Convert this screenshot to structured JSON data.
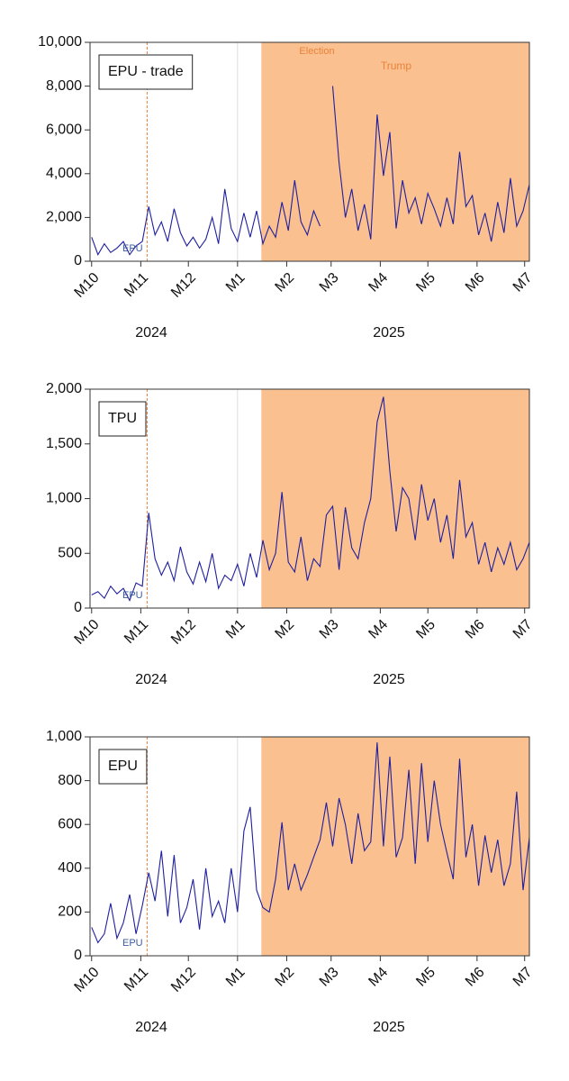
{
  "chart_data": [
    {
      "type": "line",
      "label": "EPU - trade",
      "x": [
        0,
        4,
        8,
        12,
        16,
        20,
        24,
        28,
        32,
        36,
        40,
        44,
        48,
        52,
        56,
        60,
        64,
        68,
        72,
        76,
        80,
        84,
        88,
        92,
        96,
        100,
        104,
        108,
        112,
        116,
        120,
        124,
        128,
        132,
        136,
        140,
        144,
        148,
        152,
        156,
        160,
        164,
        168,
        172,
        176,
        180,
        184,
        188,
        192,
        196,
        200,
        204,
        208,
        212,
        216,
        220,
        224,
        228,
        232,
        236,
        240,
        244,
        248,
        252,
        256,
        260,
        264,
        268,
        272,
        276
      ],
      "series": [
        {
          "name": "EPU - trade",
          "color": "#1f1f9f",
          "values": [
            1100,
            300,
            800,
            400,
            600,
            900,
            300,
            700,
            900,
            2500,
            1200,
            1800,
            900,
            2400,
            1300,
            700,
            1100,
            600,
            1000,
            2000,
            800,
            3300,
            1500,
            900,
            2200,
            1100,
            2300,
            800,
            1600,
            1100,
            2700,
            1400,
            3700,
            1800,
            1200,
            2300,
            1600,
            null,
            8000,
            4500,
            2000,
            3300,
            1400,
            2600,
            1000,
            6700,
            3900,
            5900,
            1500,
            3700,
            2200,
            2900,
            1700,
            3100,
            2400,
            1600,
            2900,
            1700,
            5000,
            2500,
            3000,
            1200,
            2200,
            900,
            2700,
            1300,
            3800,
            1600,
            2300,
            3500
          ]
        }
      ],
      "xlim": [
        -1,
        276
      ],
      "xticks": [
        {
          "value": 0,
          "label": "M10"
        },
        {
          "value": 31,
          "label": "M11"
        },
        {
          "value": 61,
          "label": "M12"
        },
        {
          "value": 92,
          "label": "M1"
        },
        {
          "value": 123,
          "label": "M2"
        },
        {
          "value": 151,
          "label": "M3"
        },
        {
          "value": 182,
          "label": "M4"
        },
        {
          "value": 212,
          "label": "M5"
        },
        {
          "value": 243,
          "label": "M6"
        },
        {
          "value": 273,
          "label": "M7"
        }
      ],
      "year_labels": [
        "2024",
        "2025"
      ],
      "ylim": [
        0,
        10000
      ],
      "yticks": [
        0,
        {
          "value": 2000,
          "label": "2,000"
        },
        {
          "value": 4000,
          "label": "4,000"
        },
        {
          "value": 6000,
          "label": "6,000"
        },
        {
          "value": 8000,
          "label": "8,000"
        },
        {
          "value": 10000,
          "label": "10,000"
        }
      ],
      "shade": {
        "from": 107,
        "to": 276,
        "color": "#fac090"
      },
      "event_line": {
        "x": 35,
        "color": "#e8833a"
      },
      "annotations": [
        "Election",
        "Trump",
        "EPU"
      ]
    },
    {
      "type": "line",
      "label": "TPU",
      "x": [
        0,
        4,
        8,
        12,
        16,
        20,
        24,
        28,
        32,
        36,
        40,
        44,
        48,
        52,
        56,
        60,
        64,
        68,
        72,
        76,
        80,
        84,
        88,
        92,
        96,
        100,
        104,
        108,
        112,
        116,
        120,
        124,
        128,
        132,
        136,
        140,
        144,
        148,
        152,
        156,
        160,
        164,
        168,
        172,
        176,
        180,
        184,
        188,
        192,
        196,
        200,
        204,
        208,
        212,
        216,
        220,
        224,
        228,
        232,
        236,
        240,
        244,
        248,
        252,
        256,
        260,
        264,
        268,
        272,
        276
      ],
      "series": [
        {
          "name": "TPU",
          "color": "#1f1f9f",
          "values": [
            120,
            150,
            90,
            200,
            130,
            180,
            70,
            230,
            200,
            870,
            450,
            300,
            420,
            250,
            560,
            330,
            220,
            420,
            240,
            500,
            180,
            300,
            250,
            400,
            200,
            500,
            280,
            620,
            350,
            500,
            1060,
            420,
            330,
            650,
            250,
            450,
            380,
            850,
            930,
            350,
            920,
            550,
            450,
            780,
            1000,
            1700,
            1930,
            1250,
            700,
            1100,
            1000,
            620,
            1130,
            800,
            1000,
            600,
            850,
            450,
            1170,
            650,
            780,
            400,
            600,
            330,
            550,
            400,
            600,
            350,
            450,
            600
          ]
        }
      ],
      "xlim": [
        -1,
        276
      ],
      "xticks": [
        {
          "value": 0,
          "label": "M10"
        },
        {
          "value": 31,
          "label": "M11"
        },
        {
          "value": 61,
          "label": "M12"
        },
        {
          "value": 92,
          "label": "M1"
        },
        {
          "value": 123,
          "label": "M2"
        },
        {
          "value": 151,
          "label": "M3"
        },
        {
          "value": 182,
          "label": "M4"
        },
        {
          "value": 212,
          "label": "M5"
        },
        {
          "value": 243,
          "label": "M6"
        },
        {
          "value": 273,
          "label": "M7"
        }
      ],
      "year_labels": [
        "2024",
        "2025"
      ],
      "ylim": [
        0,
        2000
      ],
      "yticks": [
        0,
        500,
        {
          "value": 1000,
          "label": "1,000"
        },
        {
          "value": 1500,
          "label": "1,500"
        },
        {
          "value": 2000,
          "label": "2,000"
        }
      ],
      "shade": {
        "from": 107,
        "to": 276,
        "color": "#fac090"
      },
      "event_line": {
        "x": 35,
        "color": "#e8833a"
      },
      "annotations": [
        "EPU"
      ]
    },
    {
      "type": "line",
      "label": "EPU",
      "x": [
        0,
        4,
        8,
        12,
        16,
        20,
        24,
        28,
        32,
        36,
        40,
        44,
        48,
        52,
        56,
        60,
        64,
        68,
        72,
        76,
        80,
        84,
        88,
        92,
        96,
        100,
        104,
        108,
        112,
        116,
        120,
        124,
        128,
        132,
        136,
        140,
        144,
        148,
        152,
        156,
        160,
        164,
        168,
        172,
        176,
        180,
        184,
        188,
        192,
        196,
        200,
        204,
        208,
        212,
        216,
        220,
        224,
        228,
        232,
        236,
        240,
        244,
        248,
        252,
        256,
        260,
        264,
        268,
        272,
        276
      ],
      "series": [
        {
          "name": "EPU",
          "color": "#1f1f9f",
          "values": [
            130,
            60,
            100,
            240,
            80,
            150,
            280,
            100,
            230,
            380,
            250,
            480,
            180,
            460,
            150,
            220,
            350,
            120,
            400,
            180,
            250,
            150,
            400,
            200,
            570,
            680,
            300,
            220,
            200,
            350,
            610,
            300,
            420,
            300,
            370,
            450,
            530,
            700,
            500,
            720,
            600,
            420,
            650,
            480,
            520,
            975,
            500,
            910,
            450,
            540,
            850,
            420,
            880,
            520,
            800,
            600,
            470,
            350,
            900,
            450,
            600,
            320,
            550,
            380,
            530,
            320,
            420,
            750,
            300,
            540
          ]
        }
      ],
      "xlim": [
        -1,
        276
      ],
      "xticks": [
        {
          "value": 0,
          "label": "M10"
        },
        {
          "value": 31,
          "label": "M11"
        },
        {
          "value": 61,
          "label": "M12"
        },
        {
          "value": 92,
          "label": "M1"
        },
        {
          "value": 123,
          "label": "M2"
        },
        {
          "value": 151,
          "label": "M3"
        },
        {
          "value": 182,
          "label": "M4"
        },
        {
          "value": 212,
          "label": "M5"
        },
        {
          "value": 243,
          "label": "M6"
        },
        {
          "value": 273,
          "label": "M7"
        }
      ],
      "year_labels": [
        "2024",
        "2025"
      ],
      "ylim": [
        0,
        1000
      ],
      "yticks": [
        0,
        200,
        400,
        600,
        800,
        {
          "value": 1000,
          "label": "1,000"
        }
      ],
      "shade": {
        "from": 107,
        "to": 276,
        "color": "#fac090"
      },
      "event_line": {
        "x": 35,
        "color": "#e8833a"
      },
      "annotations": [
        "EPU"
      ]
    }
  ]
}
